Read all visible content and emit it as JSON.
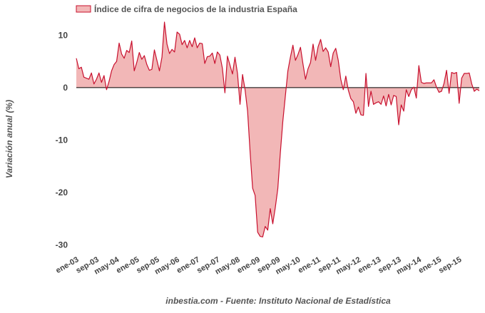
{
  "chart_data": {
    "type": "area",
    "title": "",
    "xlabel": "",
    "ylabel": "Variación anual (%)",
    "ylim": [
      -32,
      14
    ],
    "yticks": [
      10,
      0,
      -10,
      -20,
      -30
    ],
    "grid": false,
    "legend_placement": "top-left",
    "source": "inbestia.com - Fuente: Instituto Nacional de Estadística",
    "colors": {
      "line": "#c8102e",
      "fill": "#f2b7b7",
      "zero": "#000000"
    },
    "x_tick_labels": [
      "ene-03",
      "sep-03",
      "may-04",
      "ene-05",
      "sep-05",
      "may-06",
      "ene-07",
      "sep-07",
      "may-08",
      "ene-09",
      "sep-09",
      "may-10",
      "ene-11",
      "sep-11",
      "may-12",
      "ene-13",
      "sep-13",
      "may-14",
      "ene-15",
      "sep-15"
    ],
    "x_tick_months": [
      0,
      8,
      16,
      24,
      32,
      40,
      48,
      56,
      64,
      72,
      80,
      88,
      96,
      104,
      112,
      120,
      128,
      136,
      144,
      152
    ],
    "series": [
      {
        "name": "Índice de cifra de negocios de la industria España",
        "x_start": "ene-03",
        "frequency": "monthly",
        "values": [
          5.6,
          3.6,
          3.9,
          2.0,
          1.8,
          1.6,
          2.8,
          0.7,
          1.6,
          2.8,
          1.0,
          2.3,
          -0.4,
          1.2,
          3.2,
          4.4,
          5.0,
          8.5,
          6.4,
          5.6,
          7.1,
          6.7,
          8.9,
          3.2,
          4.8,
          6.7,
          5.4,
          6.1,
          4.4,
          3.3,
          3.5,
          7.2,
          5.2,
          3.2,
          5.8,
          12.5,
          8.3,
          6.5,
          7.3,
          6.8,
          10.6,
          10.2,
          8.2,
          9.0,
          7.6,
          9.0,
          7.8,
          9.5,
          7.6,
          8.5,
          8.4,
          4.6,
          5.9,
          6.0,
          6.6,
          4.6,
          6.8,
          6.2,
          3.7,
          -1.0,
          6.0,
          4.3,
          2.6,
          5.8,
          2.7,
          -3.2,
          2.5,
          -0.4,
          -4.5,
          -12.3,
          -19.2,
          -20.6,
          -27.6,
          -28.4,
          -28.5,
          -26.5,
          -27.2,
          -23.1,
          -26.0,
          -22.9,
          -19.3,
          -12.5,
          -6.4,
          -1.6,
          3.2,
          5.8,
          8.1,
          5.2,
          6.3,
          7.7,
          4.5,
          1.6,
          3.6,
          4.8,
          8.3,
          5.2,
          7.8,
          9.2,
          6.9,
          7.6,
          6.8,
          4.0,
          6.6,
          7.5,
          5.2,
          1.6,
          -0.4,
          2.2,
          -0.5,
          -2.1,
          -2.7,
          -4.9,
          -3.7,
          -5.2,
          -5.3,
          2.7,
          -3.6,
          -0.7,
          -3.2,
          -2.9,
          -2.7,
          -3.2,
          -1.6,
          -3.5,
          -1.3,
          -3.3,
          -1.5,
          -1.7,
          -7.1,
          -3.3,
          -4.5,
          -0.4,
          -1.7,
          -0.4,
          0.1,
          -2.0,
          4.2,
          1.0,
          0.8,
          0.9,
          0.9,
          0.9,
          1.5,
          0.1,
          -0.9,
          -0.7,
          0.8,
          3.3,
          -1.1,
          2.9,
          2.7,
          2.9,
          -3.0,
          1.8,
          2.7,
          2.7,
          2.8,
          0.7,
          -0.7,
          -0.3,
          -0.6
        ]
      }
    ]
  }
}
